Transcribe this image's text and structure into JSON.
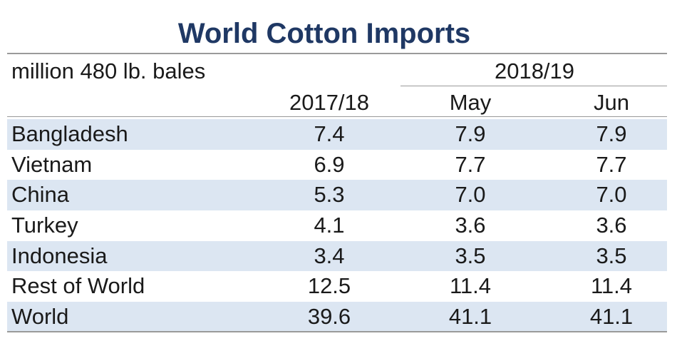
{
  "chart_data": {
    "type": "table",
    "title": "World Cotton Imports",
    "unit_label": "million 480 lb. bales",
    "group_header": "2018/19",
    "columns": [
      "2017/18",
      "May",
      "Jun"
    ],
    "rows": [
      {
        "country": "Bangladesh",
        "values": [
          "7.4",
          "7.9",
          "7.9"
        ]
      },
      {
        "country": "Vietnam",
        "values": [
          "6.9",
          "7.7",
          "7.7"
        ]
      },
      {
        "country": "China",
        "values": [
          "5.3",
          "7.0",
          "7.0"
        ]
      },
      {
        "country": "Turkey",
        "values": [
          "4.1",
          "3.6",
          "3.6"
        ]
      },
      {
        "country": "Indonesia",
        "values": [
          "3.4",
          "3.5",
          "3.5"
        ]
      },
      {
        "country": "Rest of World",
        "values": [
          "12.5",
          "11.4",
          "11.4"
        ]
      },
      {
        "country": "World",
        "values": [
          "39.6",
          "41.1",
          "41.1"
        ]
      }
    ]
  },
  "colors": {
    "title": "#1f3864",
    "row_shade": "#dce6f2",
    "rule": "#9a9a9a"
  }
}
